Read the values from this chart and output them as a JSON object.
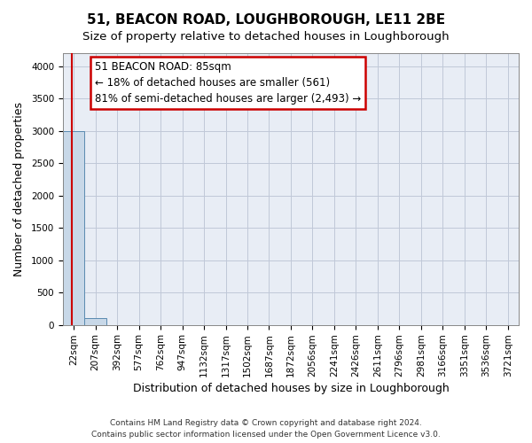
{
  "title": "51, BEACON ROAD, LOUGHBOROUGH, LE11 2BE",
  "subtitle": "Size of property relative to detached houses in Loughborough",
  "xlabel": "Distribution of detached houses by size in Loughborough",
  "ylabel": "Number of detached properties",
  "footer_line1": "Contains HM Land Registry data © Crown copyright and database right 2024.",
  "footer_line2": "Contains public sector information licensed under the Open Government Licence v3.0.",
  "bin_labels": [
    "22sqm",
    "207sqm",
    "392sqm",
    "577sqm",
    "762sqm",
    "947sqm",
    "1132sqm",
    "1317sqm",
    "1502sqm",
    "1687sqm",
    "1872sqm",
    "2056sqm",
    "2241sqm",
    "2426sqm",
    "2611sqm",
    "2796sqm",
    "2981sqm",
    "3166sqm",
    "3351sqm",
    "3536sqm",
    "3721sqm"
  ],
  "bar_heights": [
    3000,
    100,
    0,
    0,
    0,
    0,
    0,
    0,
    0,
    0,
    0,
    0,
    0,
    0,
    0,
    0,
    0,
    0,
    0,
    0
  ],
  "bar_color": "#c8d8e8",
  "bar_edge_color": "#5a8ab0",
  "grid_color": "#c0c8d8",
  "background_color": "#e8edf5",
  "annotation_line1": "51 BEACON ROAD: 85sqm",
  "annotation_line2": "← 18% of detached houses are smaller (561)",
  "annotation_line3": "81% of semi-detached houses are larger (2,493) →",
  "annotation_box_color": "#ffffff",
  "annotation_border_color": "#cc0000",
  "ylim": [
    0,
    4200
  ],
  "yticks": [
    0,
    500,
    1000,
    1500,
    2000,
    2500,
    3000,
    3500,
    4000
  ],
  "title_fontsize": 11,
  "subtitle_fontsize": 9.5,
  "axis_label_fontsize": 9,
  "tick_fontsize": 7.5,
  "annotation_fontsize": 8.5,
  "footer_fontsize": 6.5
}
